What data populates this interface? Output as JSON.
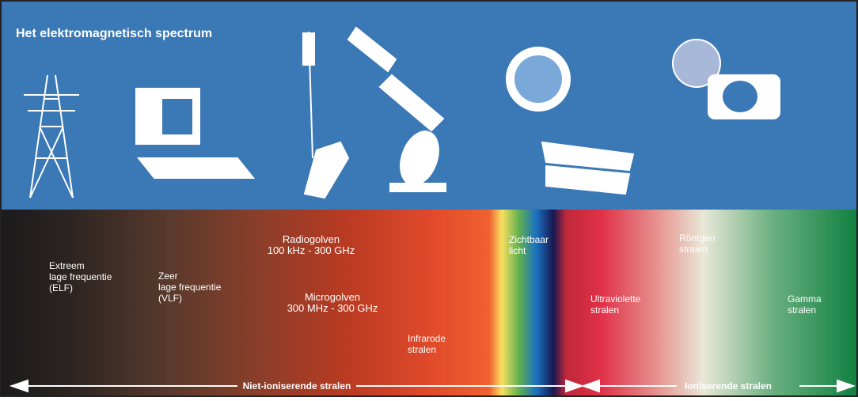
{
  "title": "Het elektromagnetisch spectrum",
  "bands": [
    {
      "lines": [
        "Extreem",
        "lage frequentie",
        "(ELF)"
      ]
    },
    {
      "lines": [
        "Zeer",
        "lage frequentie",
        "(VLF)"
      ]
    },
    {
      "lines": [
        "Radiogolven",
        "100 kHz - 300 GHz"
      ]
    },
    {
      "lines": [
        "Microgolven",
        "300 MHz - 300 GHz"
      ]
    },
    {
      "lines": [
        "Infrarode",
        "stralen"
      ]
    },
    {
      "lines": [
        "Zichtbaar",
        "licht"
      ]
    },
    {
      "lines": [
        "Ultraviolette",
        "stralen"
      ]
    },
    {
      "lines": [
        "Röntgen",
        "stralen"
      ]
    },
    {
      "lines": [
        "Gamma",
        "stralen"
      ]
    }
  ],
  "ranges": [
    {
      "label": "Niet-ioniserende stralen"
    },
    {
      "label": "Ioniserende stralen"
    }
  ]
}
